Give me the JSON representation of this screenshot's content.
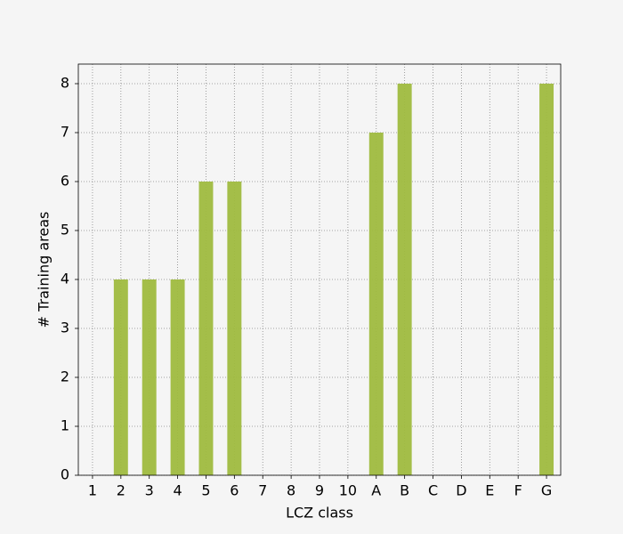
{
  "chart_data": {
    "type": "bar",
    "x_label": "LCZ class",
    "y_label": "# Training areas",
    "categories": [
      "1",
      "2",
      "3",
      "4",
      "5",
      "6",
      "7",
      "8",
      "9",
      "10",
      "A",
      "B",
      "C",
      "D",
      "E",
      "F",
      "G"
    ],
    "values": [
      0,
      4,
      4,
      4,
      6,
      6,
      0,
      0,
      0,
      0,
      7,
      8,
      0,
      0,
      0,
      0,
      8
    ],
    "color": "#9fba3f",
    "ylim": [
      0,
      8.4
    ],
    "yticks": [
      0,
      1,
      2,
      3,
      4,
      5,
      6,
      7,
      8
    ],
    "grid": true
  }
}
